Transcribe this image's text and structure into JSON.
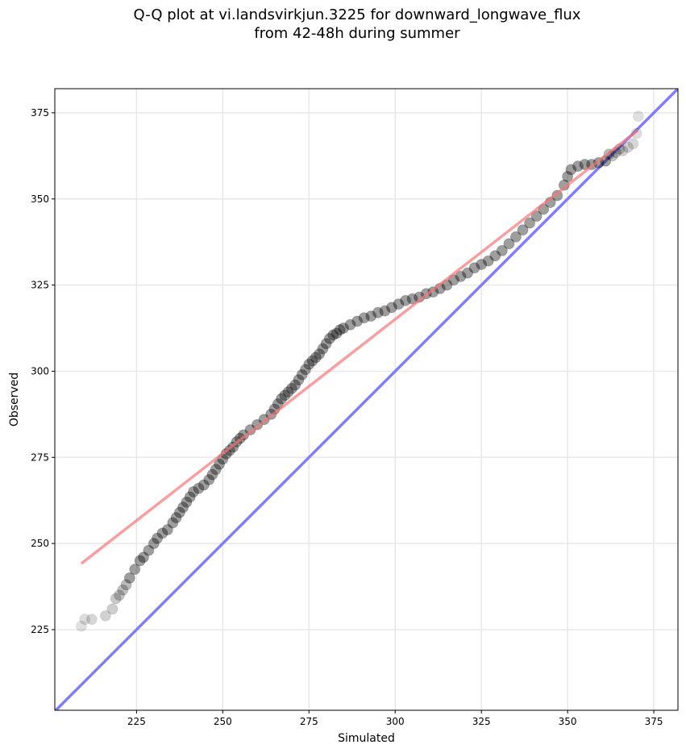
{
  "title": {
    "line1": "Q-Q plot at vi.landsvirkjun.3225 for downward_longwave_flux",
    "line2": "from 42-48h during summer"
  },
  "colors": {
    "points": "#000000",
    "fit_line": "#f4777a",
    "identity_line": "#7f7ff5",
    "grid": "#e8e8e8"
  },
  "chart_data": {
    "type": "scatter",
    "title": "Q-Q plot at vi.landsvirkjun.3225 for downward_longwave_flux from 42-48h during summer",
    "xlabel": "Simulated",
    "ylabel": "Observed",
    "xlim": [
      201.3,
      382.0
    ],
    "ylim": [
      201.6,
      382.0
    ],
    "xticks": [
      225,
      250,
      275,
      300,
      325,
      350,
      375
    ],
    "yticks": [
      225,
      250,
      275,
      300,
      325,
      350,
      375
    ],
    "grid": true,
    "points": {
      "x": [
        209.0,
        210.0,
        212.0,
        216.0,
        218.0,
        219.0,
        220.0,
        221.0,
        222.0,
        223.0,
        224.5,
        226.0,
        227.0,
        228.5,
        230.0,
        231.0,
        232.5,
        234.0,
        235.5,
        236.5,
        237.5,
        238.5,
        239.5,
        240.5,
        241.5,
        243.0,
        244.5,
        246.0,
        247.0,
        248.0,
        249.0,
        250.0,
        251.0,
        252.0,
        253.0,
        254.0,
        255.0,
        256.0,
        258.0,
        260.0,
        262.0,
        264.0,
        265.0,
        266.0,
        267.0,
        268.0,
        269.0,
        270.0,
        271.0,
        272.0,
        273.0,
        274.0,
        275.0,
        276.0,
        277.0,
        278.0,
        279.0,
        280.0,
        281.0,
        282.0,
        283.0,
        284.0,
        285.0,
        287.0,
        289.0,
        291.0,
        293.0,
        295.0,
        297.0,
        299.0,
        301.0,
        303.0,
        305.0,
        307.0,
        309.0,
        311.0,
        313.0,
        315.0,
        317.0,
        319.0,
        321.0,
        323.0,
        325.0,
        327.0,
        329.0,
        331.0,
        333.0,
        335.0,
        337.0,
        339.0,
        341.0,
        343.0,
        345.0,
        347.0,
        349.0,
        350.0,
        351.0,
        353.0,
        355.0,
        357.0,
        359.0,
        361.0,
        362.0,
        363.0,
        364.0,
        365.0,
        366.0,
        367.5,
        369.0,
        370.0,
        370.5
      ],
      "y": [
        226.0,
        228.0,
        228.0,
        229.0,
        231.0,
        234.0,
        235.0,
        236.5,
        238.0,
        240.0,
        242.5,
        245.0,
        246.0,
        248.0,
        250.0,
        251.5,
        253.0,
        254.0,
        256.0,
        257.5,
        259.0,
        260.5,
        262.0,
        263.5,
        265.0,
        266.0,
        267.0,
        268.5,
        270.0,
        271.5,
        273.0,
        274.5,
        276.0,
        277.0,
        278.0,
        279.5,
        280.5,
        281.5,
        283.0,
        284.5,
        286.0,
        287.5,
        289.0,
        290.5,
        292.0,
        293.0,
        294.0,
        295.0,
        296.0,
        297.5,
        299.0,
        300.5,
        302.0,
        303.0,
        304.0,
        305.0,
        306.5,
        308.0,
        309.5,
        310.5,
        311.0,
        312.0,
        312.5,
        313.5,
        314.5,
        315.5,
        316.0,
        317.0,
        317.5,
        318.5,
        319.5,
        320.5,
        321.0,
        321.5,
        322.5,
        323.0,
        324.0,
        325.0,
        326.5,
        327.5,
        328.5,
        330.0,
        331.0,
        332.0,
        333.5,
        335.0,
        337.0,
        339.0,
        341.0,
        343.0,
        345.0,
        347.0,
        349.0,
        351.0,
        354.0,
        356.5,
        358.5,
        359.5,
        360.0,
        360.0,
        360.5,
        361.0,
        363.0,
        362.5,
        363.5,
        364.5,
        364.0,
        365.0,
        366.0,
        369.0,
        374.0
      ]
    },
    "series": [
      {
        "type": "line",
        "x": [
          209,
          370.5
        ],
        "y": [
          244.2,
          370.0
        ]
      },
      {
        "type": "line",
        "x": [
          201.3,
          382.0
        ],
        "y": [
          201.3,
          382.0
        ]
      }
    ]
  }
}
